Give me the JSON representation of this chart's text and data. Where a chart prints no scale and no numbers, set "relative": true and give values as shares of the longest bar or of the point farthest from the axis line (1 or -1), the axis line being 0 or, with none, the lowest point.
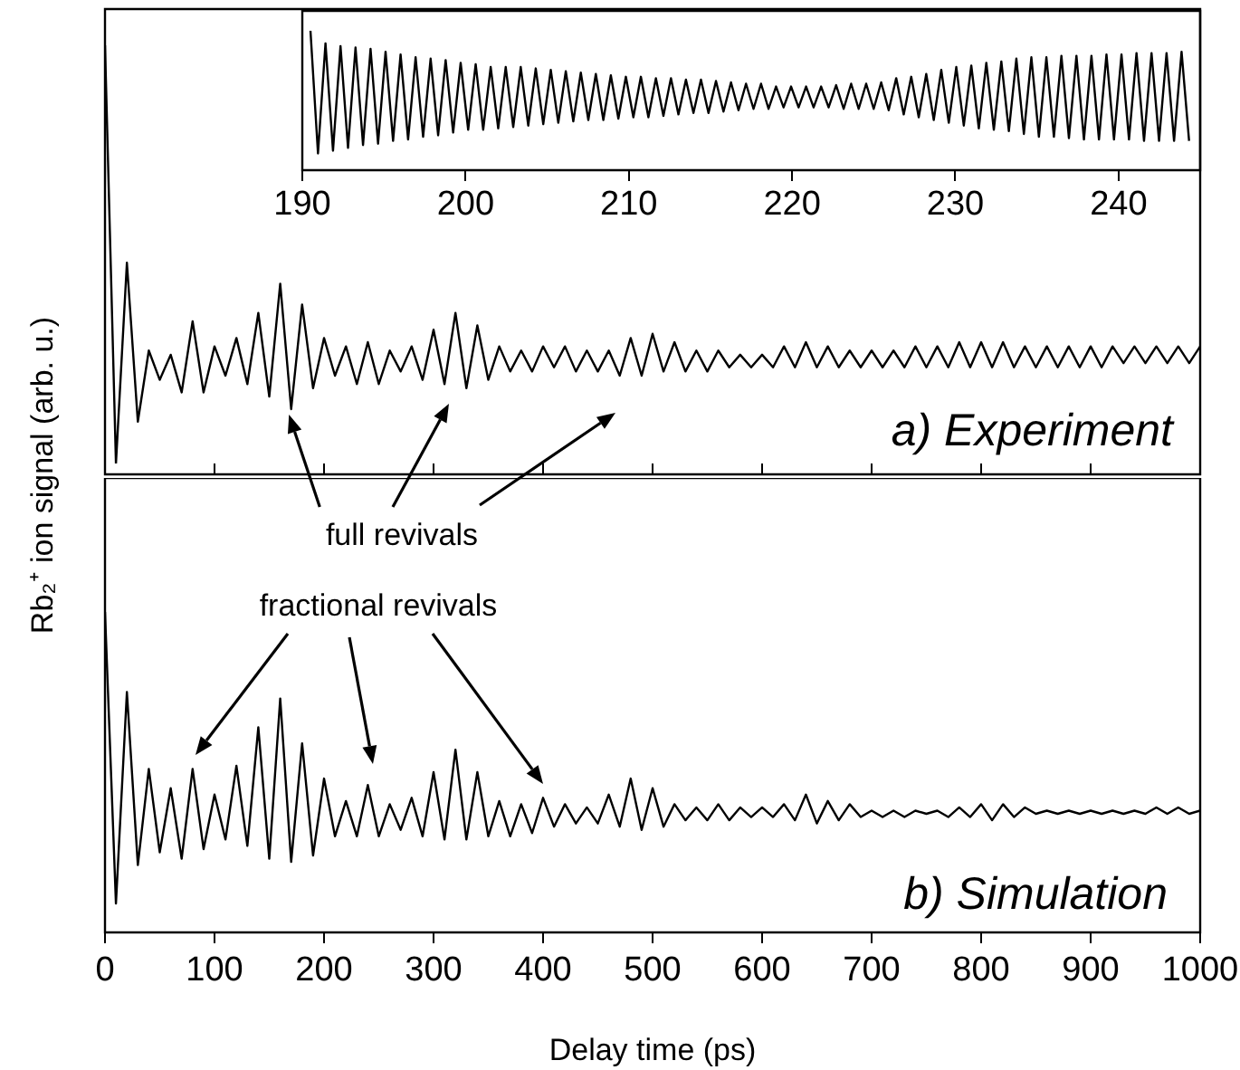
{
  "chart_data": [
    {
      "type": "line",
      "ylabel": "Rb₂⁺ ion signal (arb. u.)",
      "relative": true,
      "tick_labels": false,
      "xlim": [
        0,
        1000
      ],
      "xticks": [
        0,
        100,
        200,
        300,
        400,
        500,
        600,
        700,
        800,
        900,
        1000
      ],
      "annotations": [
        "a) Experiment",
        "full revivals"
      ],
      "series": [
        {
          "color": "#000000",
          "x": [
            0,
            10,
            20,
            30,
            40,
            50,
            60,
            70,
            80,
            90,
            100,
            110,
            120,
            130,
            140,
            150,
            160,
            170,
            180,
            190,
            200,
            210,
            220,
            230,
            240,
            250,
            260,
            270,
            280,
            290,
            300,
            310,
            320,
            330,
            340,
            350,
            360,
            370,
            380,
            390,
            400,
            410,
            420,
            430,
            440,
            450,
            460,
            470,
            480,
            490,
            500,
            510,
            520,
            530,
            540,
            550,
            560,
            570,
            580,
            590,
            600,
            610,
            620,
            630,
            640,
            650,
            660,
            670,
            680,
            690,
            700,
            710,
            720,
            730,
            740,
            750,
            760,
            770,
            780,
            790,
            800,
            810,
            820,
            830,
            840,
            850,
            860,
            870,
            880,
            890,
            900,
            910,
            920,
            930,
            940,
            950,
            960,
            970,
            980,
            990,
            1000
          ],
          "values": [
            1,
            0,
            0.48,
            0.1,
            0.27,
            0.2,
            0.26,
            0.17,
            0.34,
            0.17,
            0.28,
            0.21,
            0.3,
            0.19,
            0.36,
            0.16,
            0.43,
            0.13,
            0.38,
            0.18,
            0.3,
            0.21,
            0.28,
            0.19,
            0.29,
            0.19,
            0.27,
            0.22,
            0.28,
            0.2,
            0.32,
            0.19,
            0.36,
            0.18,
            0.33,
            0.2,
            0.28,
            0.22,
            0.27,
            0.22,
            0.28,
            0.23,
            0.28,
            0.22,
            0.27,
            0.22,
            0.27,
            0.21,
            0.3,
            0.21,
            0.31,
            0.22,
            0.29,
            0.22,
            0.27,
            0.22,
            0.27,
            0.23,
            0.26,
            0.23,
            0.26,
            0.23,
            0.28,
            0.23,
            0.29,
            0.23,
            0.28,
            0.23,
            0.27,
            0.23,
            0.27,
            0.23,
            0.27,
            0.23,
            0.28,
            0.23,
            0.28,
            0.23,
            0.29,
            0.23,
            0.29,
            0.23,
            0.29,
            0.23,
            0.28,
            0.23,
            0.28,
            0.23,
            0.28,
            0.23,
            0.28,
            0.23,
            0.28,
            0.24,
            0.28,
            0.24,
            0.28,
            0.24,
            0.28,
            0.24,
            0.28
          ]
        }
      ]
    },
    {
      "type": "line",
      "relative": true,
      "xlim": [
        190,
        245
      ],
      "xticks": [
        190,
        200,
        210,
        220,
        230,
        240
      ],
      "series": [
        {
          "color": "#000000",
          "x": [
            190.5,
            190.96,
            191.42,
            191.88,
            192.34,
            192.8,
            193.26,
            193.72,
            194.18,
            194.64,
            195.1,
            195.56,
            196.02,
            196.48,
            196.94,
            197.4,
            197.86,
            198.32,
            198.78,
            199.24,
            199.7,
            200.16,
            200.62,
            201.08,
            201.54,
            202,
            202.46,
            202.92,
            203.38,
            203.84,
            204.3,
            204.76,
            205.22,
            205.68,
            206.14,
            206.6,
            207.06,
            207.52,
            207.98,
            208.44,
            208.9,
            209.36,
            209.82,
            210.28,
            210.74,
            211.2,
            211.66,
            212.12,
            212.58,
            213.04,
            213.5,
            213.96,
            214.42,
            214.88,
            215.34,
            215.8,
            216.26,
            216.72,
            217.18,
            217.64,
            218.1,
            218.56,
            219.02,
            219.48,
            219.94,
            220.4,
            220.86,
            221.32,
            221.78,
            222.24,
            222.7,
            223.16,
            223.62,
            224.08,
            224.54,
            225,
            225.46,
            225.92,
            226.38,
            226.84,
            227.3,
            227.76,
            228.22,
            228.68,
            229.14,
            229.6,
            230.06,
            230.52,
            230.98,
            231.44,
            231.9,
            232.36,
            232.82,
            233.28,
            233.74,
            234.2,
            234.66,
            235.12,
            235.58,
            236.04,
            236.5,
            236.96,
            237.42,
            237.88,
            238.34,
            238.8,
            239.26,
            239.72,
            240.18,
            240.64,
            241.1,
            241.56,
            242.02,
            242.48,
            242.94,
            243.4,
            243.86,
            244.32
          ],
          "values": [
            1.0,
            0.12,
            0.91,
            0.14,
            0.89,
            0.16,
            0.88,
            0.18,
            0.87,
            0.19,
            0.85,
            0.21,
            0.83,
            0.22,
            0.81,
            0.24,
            0.8,
            0.25,
            0.79,
            0.27,
            0.77,
            0.29,
            0.76,
            0.29,
            0.74,
            0.3,
            0.74,
            0.31,
            0.74,
            0.32,
            0.73,
            0.33,
            0.72,
            0.34,
            0.71,
            0.35,
            0.7,
            0.36,
            0.69,
            0.36,
            0.68,
            0.37,
            0.67,
            0.38,
            0.67,
            0.38,
            0.66,
            0.39,
            0.66,
            0.4,
            0.65,
            0.41,
            0.65,
            0.41,
            0.64,
            0.42,
            0.63,
            0.43,
            0.62,
            0.44,
            0.62,
            0.44,
            0.6,
            0.45,
            0.6,
            0.45,
            0.6,
            0.45,
            0.6,
            0.45,
            0.61,
            0.44,
            0.62,
            0.44,
            0.62,
            0.44,
            0.63,
            0.43,
            0.66,
            0.4,
            0.67,
            0.38,
            0.69,
            0.36,
            0.72,
            0.34,
            0.74,
            0.32,
            0.75,
            0.3,
            0.77,
            0.29,
            0.78,
            0.28,
            0.8,
            0.26,
            0.81,
            0.24,
            0.81,
            0.24,
            0.82,
            0.23,
            0.82,
            0.22,
            0.82,
            0.22,
            0.83,
            0.22,
            0.83,
            0.22,
            0.84,
            0.21,
            0.84,
            0.21,
            0.84,
            0.21,
            0.85,
            0.21
          ]
        }
      ]
    },
    {
      "type": "line",
      "xlabel": "Delay time (ps)",
      "relative": true,
      "xlim": [
        0,
        1000
      ],
      "xticks": [
        0,
        100,
        200,
        300,
        400,
        500,
        600,
        700,
        800,
        900,
        1000
      ],
      "annotations": [
        "fractional revivals",
        "b) Simulation"
      ],
      "series": [
        {
          "color": "#000000",
          "x": [
            0,
            10,
            20,
            30,
            40,
            50,
            60,
            70,
            80,
            90,
            100,
            110,
            120,
            130,
            140,
            150,
            160,
            170,
            180,
            190,
            200,
            210,
            220,
            230,
            240,
            250,
            260,
            270,
            280,
            290,
            300,
            310,
            320,
            330,
            340,
            350,
            360,
            370,
            380,
            390,
            400,
            410,
            420,
            430,
            440,
            450,
            460,
            470,
            480,
            490,
            500,
            510,
            520,
            530,
            540,
            550,
            560,
            570,
            580,
            590,
            600,
            610,
            620,
            630,
            640,
            650,
            660,
            670,
            680,
            690,
            700,
            710,
            720,
            730,
            740,
            750,
            760,
            770,
            780,
            790,
            800,
            810,
            820,
            830,
            840,
            850,
            860,
            870,
            880,
            890,
            900,
            910,
            920,
            930,
            940,
            950,
            960,
            970,
            980,
            990,
            1000
          ],
          "values": [
            1,
            0.09,
            0.75,
            0.21,
            0.51,
            0.25,
            0.45,
            0.23,
            0.51,
            0.26,
            0.43,
            0.29,
            0.52,
            0.27,
            0.64,
            0.23,
            0.73,
            0.22,
            0.59,
            0.24,
            0.48,
            0.3,
            0.41,
            0.3,
            0.46,
            0.3,
            0.4,
            0.32,
            0.42,
            0.3,
            0.5,
            0.29,
            0.57,
            0.29,
            0.5,
            0.3,
            0.41,
            0.3,
            0.4,
            0.31,
            0.42,
            0.33,
            0.4,
            0.34,
            0.39,
            0.34,
            0.43,
            0.33,
            0.48,
            0.32,
            0.45,
            0.33,
            0.4,
            0.35,
            0.39,
            0.35,
            0.4,
            0.35,
            0.39,
            0.36,
            0.39,
            0.36,
            0.4,
            0.35,
            0.43,
            0.34,
            0.41,
            0.35,
            0.4,
            0.36,
            0.38,
            0.36,
            0.38,
            0.36,
            0.38,
            0.37,
            0.38,
            0.36,
            0.39,
            0.36,
            0.4,
            0.35,
            0.4,
            0.36,
            0.39,
            0.37,
            0.38,
            0.37,
            0.38,
            0.37,
            0.38,
            0.37,
            0.38,
            0.37,
            0.38,
            0.37,
            0.39,
            0.37,
            0.39,
            0.37,
            0.38
          ]
        }
      ]
    }
  ]
}
